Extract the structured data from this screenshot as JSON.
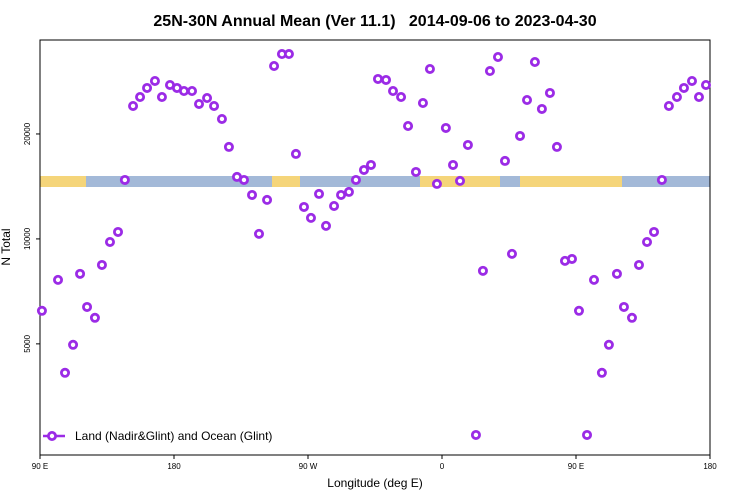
{
  "chart_data": {
    "type": "scatter",
    "title": "25N-30N Annual Mean (Ver 11.1)   2014-09-06 to 2023-04-30",
    "x_label": "Longitude (deg E)",
    "y_label": "N Total",
    "y_scale": "log",
    "xlim": [
      90,
      540
    ],
    "xticks": [
      {
        "value": 90,
        "label": "90 E"
      },
      {
        "value": 180,
        "label": "180"
      },
      {
        "value": 270,
        "label": "90 W"
      },
      {
        "value": 360,
        "label": "0"
      },
      {
        "value": 450,
        "label": "90 E"
      },
      {
        "value": 540,
        "label": "180"
      }
    ],
    "ylim": [
      2400,
      37200
    ],
    "yticks": [
      5000,
      10000,
      20000
    ],
    "legend": "bottom-left",
    "series": [
      {
        "name": "Land (Nadir&Glint) and Ocean (Glint)",
        "color": "#9b2be6",
        "x": [
          91.3,
          102.1,
          106.8,
          112.2,
          116.9,
          121.6,
          126.9,
          131.6,
          137,
          142.4,
          147,
          152.5,
          157.2,
          161.9,
          167.2,
          171.9,
          177.3,
          182,
          186.7,
          192.1,
          196.8,
          202.2,
          206.9,
          212.2,
          216.9,
          222.3,
          227,
          232.4,
          237.1,
          242.5,
          247.2,
          252.5,
          257.2,
          261.9,
          267.3,
          272,
          277.4,
          282.1,
          287.5,
          292.2,
          297.5,
          302.2,
          307.6,
          312.3,
          317,
          322.4,
          327.1,
          332.5,
          337.2,
          342.5,
          347.2,
          351.9,
          356.6,
          362.6,
          367.4,
          372.1,
          377.4,
          382.8,
          387.5,
          392.2,
          397.6,
          402.3,
          407,
          412.4,
          417.1,
          422.4,
          427.1,
          432.5,
          437.2,
          442.6,
          447.3,
          452,
          457.4,
          462.1,
          467.4,
          472.1,
          477.5,
          482.2,
          487.6,
          492.3,
          497.7,
          502.4,
          507.7,
          512.4,
          517.8,
          522.5,
          527.9,
          532.6,
          537.3
        ],
        "values": [
          6220,
          7630,
          4130,
          4970,
          7940,
          6380,
          5940,
          8420,
          9800,
          10470,
          14760,
          24060,
          25530,
          27100,
          28380,
          25530,
          27640,
          27100,
          26560,
          26560,
          24380,
          25360,
          24060,
          22080,
          18360,
          15060,
          14760,
          13370,
          10340,
          12940,
          31330,
          33910,
          33910,
          17530,
          12350,
          11490,
          13460,
          10900,
          12430,
          13370,
          13640,
          14760,
          15770,
          16300,
          28760,
          28570,
          26560,
          25530,
          21080,
          15560,
          24540,
          30720,
          14380,
          20810,
          16300,
          14670,
          18600,
          2740,
          8100,
          30310,
          33250,
          16740,
          9060,
          19740,
          25030,
          32170,
          23590,
          26220,
          18360,
          8650,
          8760,
          6220,
          2740,
          7630,
          4130,
          4970,
          7940,
          6380,
          5940,
          8420,
          9800,
          10470,
          14760,
          24060,
          25530,
          27100,
          28380,
          25530,
          27640
        ]
      }
    ]
  }
}
